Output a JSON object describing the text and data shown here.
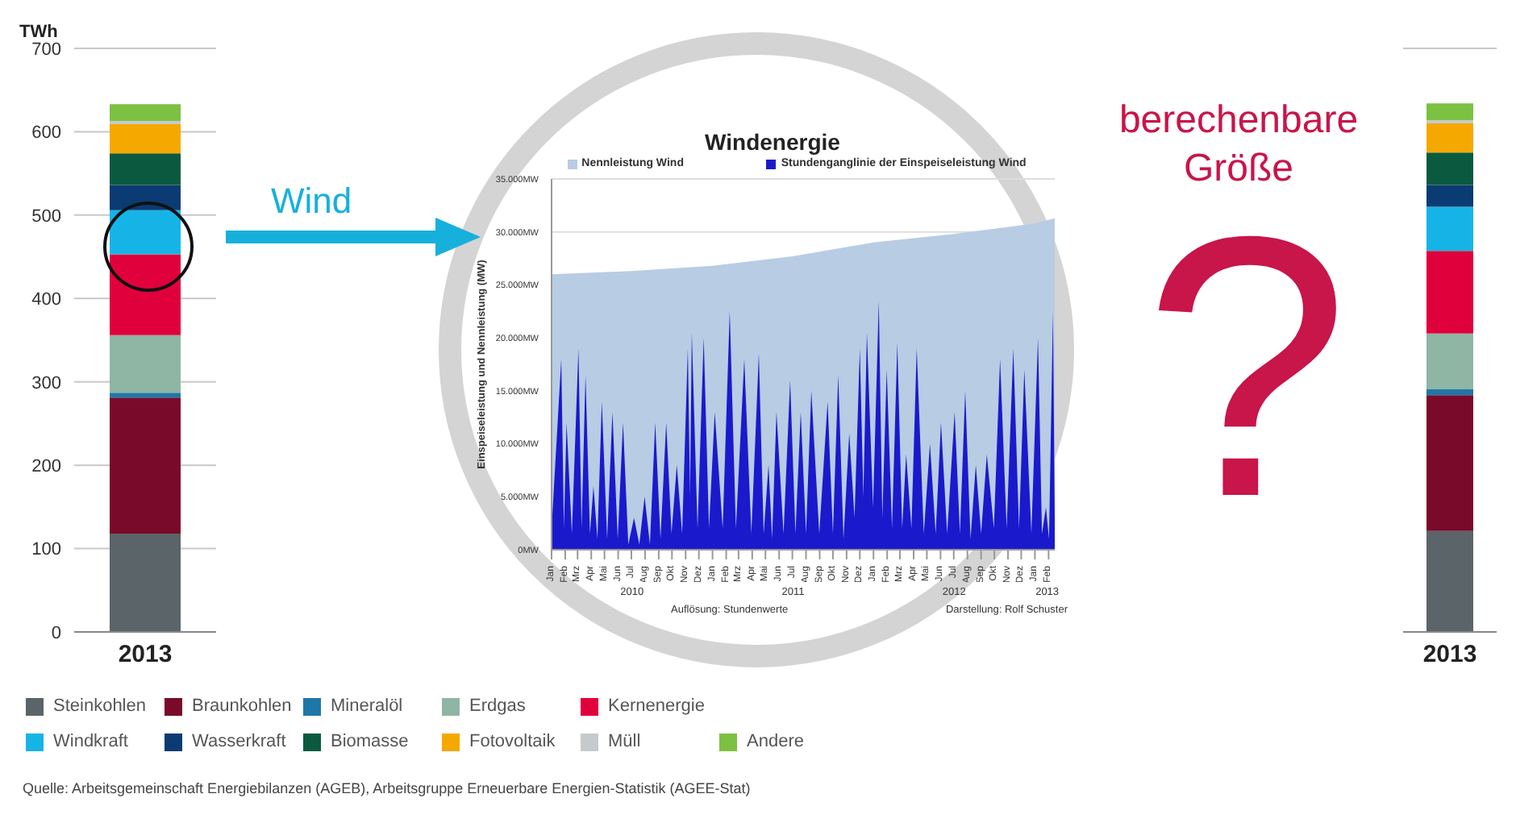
{
  "chart_data": [
    {
      "type": "bar",
      "stacked": true,
      "ylabel": "TWh",
      "categories": [
        "2013"
      ],
      "ylim": [
        0,
        700
      ],
      "yticks": [
        0,
        100,
        200,
        300,
        400,
        500,
        600,
        700
      ],
      "grid": "y",
      "legend": "bottom",
      "series": [
        {
          "name": "Steinkohlen",
          "color": "#5a6469",
          "values": [
            118
          ]
        },
        {
          "name": "Braunkohlen",
          "color": "#7a0a2a",
          "values": [
            163
          ]
        },
        {
          "name": "Mineralöl",
          "color": "#1f77a8",
          "values": [
            6
          ]
        },
        {
          "name": "Erdgas",
          "color": "#8fb5a5",
          "values": [
            69
          ]
        },
        {
          "name": "Kernenergie",
          "color": "#e0003c",
          "values": [
            97
          ]
        },
        {
          "name": "Windkraft",
          "color": "#16b4e6",
          "values": [
            53
          ]
        },
        {
          "name": "Wasserkraft",
          "color": "#0b3b73",
          "values": [
            30
          ]
        },
        {
          "name": "Biomasse",
          "color": "#0b5a40",
          "values": [
            38
          ]
        },
        {
          "name": "Fotovoltaik",
          "color": "#f5a800",
          "values": [
            35
          ]
        },
        {
          "name": "Müll",
          "color": "#c5cbcc",
          "values": [
            4
          ]
        },
        {
          "name": "Andere",
          "color": "#7cc142",
          "values": [
            20
          ]
        }
      ],
      "annotations": [
        "Wind",
        "Quelle: Arbeitsgemeinschaft Energiebilanzen (AGEB), Arbeitsgruppe Erneuerbare Energien-Statistik (AGEE-Stat)"
      ]
    },
    {
      "type": "area",
      "title": "Windenergie",
      "ylabel": "Einspeiseleistung und Nennleistung (MW)",
      "xlim": [
        "2010-01-01",
        "2013-02-15"
      ],
      "ylim": [
        0,
        35000
      ],
      "yticks": [
        {
          "value": 0,
          "label": "0MW"
        },
        {
          "value": 5000,
          "label": "5.000MW"
        },
        {
          "value": 10000,
          "label": "10.000MW"
        },
        {
          "value": 15000,
          "label": "15.000MW"
        },
        {
          "value": 20000,
          "label": "20.000MW"
        },
        {
          "value": 25000,
          "label": "25.000MW"
        },
        {
          "value": 30000,
          "label": "30.000MW"
        },
        {
          "value": 35000,
          "label": "35.000MW"
        }
      ],
      "xticks": [
        {
          "value": "2010-01-01",
          "label": "Jan"
        },
        {
          "value": "2010-02-01",
          "label": "Feb"
        },
        {
          "value": "2010-03-01",
          "label": "Mrz"
        },
        {
          "value": "2010-04-01",
          "label": "Apr"
        },
        {
          "value": "2010-05-01",
          "label": "Mai"
        },
        {
          "value": "2010-06-01",
          "label": "Jun"
        },
        {
          "value": "2010-07-01",
          "label": "Jul"
        },
        {
          "value": "2010-08-01",
          "label": "Aug"
        },
        {
          "value": "2010-09-01",
          "label": "Sep"
        },
        {
          "value": "2010-10-01",
          "label": "Okt"
        },
        {
          "value": "2010-11-01",
          "label": "Nov"
        },
        {
          "value": "2010-12-01",
          "label": "Dez"
        },
        {
          "value": "2011-01-01",
          "label": "Jan"
        },
        {
          "value": "2011-02-01",
          "label": "Feb"
        },
        {
          "value": "2011-03-01",
          "label": "Mrz"
        },
        {
          "value": "2011-04-01",
          "label": "Apr"
        },
        {
          "value": "2011-05-01",
          "label": "Mai"
        },
        {
          "value": "2011-06-01",
          "label": "Jun"
        },
        {
          "value": "2011-07-01",
          "label": "Jul"
        },
        {
          "value": "2011-08-01",
          "label": "Aug"
        },
        {
          "value": "2011-09-01",
          "label": "Sep"
        },
        {
          "value": "2011-10-01",
          "label": "Okt"
        },
        {
          "value": "2011-11-01",
          "label": "Nov"
        },
        {
          "value": "2011-12-01",
          "label": "Dez"
        },
        {
          "value": "2012-01-01",
          "label": "Jan"
        },
        {
          "value": "2012-02-01",
          "label": "Feb"
        },
        {
          "value": "2012-03-01",
          "label": "Mrz"
        },
        {
          "value": "2012-04-01",
          "label": "Apr"
        },
        {
          "value": "2012-05-01",
          "label": "Mai"
        },
        {
          "value": "2012-06-01",
          "label": "Jun"
        },
        {
          "value": "2012-07-01",
          "label": "Jul"
        },
        {
          "value": "2012-08-01",
          "label": "Aug"
        },
        {
          "value": "2012-09-01",
          "label": "Sep"
        },
        {
          "value": "2012-10-01",
          "label": "Okt"
        },
        {
          "value": "2012-11-01",
          "label": "Nov"
        },
        {
          "value": "2012-12-01",
          "label": "Dez"
        },
        {
          "value": "2013-01-01",
          "label": "Jan"
        },
        {
          "value": "2013-02-01",
          "label": "Feb"
        }
      ],
      "grid": "y",
      "legend": "top",
      "series": [
        {
          "name": "Nennleistung Wind",
          "color": "#b8cce4",
          "x": [
            "2010-01-01",
            "2010-07-01",
            "2011-01-01",
            "2011-07-01",
            "2012-01-01",
            "2012-07-01",
            "2013-01-01",
            "2013-02-15"
          ],
          "values": [
            26000,
            26300,
            26800,
            27700,
            29000,
            29800,
            30800,
            31300
          ]
        },
        {
          "name": "Stundenganglinie der Einspeiseleistung Wind",
          "color": "#1a1acc",
          "x": [
            "2010-01-01",
            "2010-01-23",
            "2010-01-29",
            "2010-02-04",
            "2010-02-16",
            "2010-03-03",
            "2010-03-10",
            "2010-03-19",
            "2010-03-29",
            "2010-04-06",
            "2010-04-15",
            "2010-04-25",
            "2010-05-07",
            "2010-05-19",
            "2010-05-31",
            "2010-06-12",
            "2010-06-24",
            "2010-07-07",
            "2010-07-19",
            "2010-07-31",
            "2010-08-12",
            "2010-08-24",
            "2010-09-05",
            "2010-09-18",
            "2010-09-30",
            "2010-10-12",
            "2010-10-24",
            "2010-11-06",
            "2010-11-11",
            "2010-11-15",
            "2010-11-28",
            "2010-12-12",
            "2010-12-24",
            "2011-01-06",
            "2011-01-24",
            "2011-02-09",
            "2011-02-23",
            "2011-03-14",
            "2011-03-30",
            "2011-04-16",
            "2011-04-27",
            "2011-05-08",
            "2011-05-16",
            "2011-05-26",
            "2011-06-11",
            "2011-06-26",
            "2011-07-08",
            "2011-07-20",
            "2011-08-01",
            "2011-08-13",
            "2011-08-31",
            "2011-09-19",
            "2011-10-01",
            "2011-10-13",
            "2011-10-25",
            "2011-11-07",
            "2011-11-19",
            "2011-12-01",
            "2011-12-09",
            "2011-12-17",
            "2011-12-31",
            "2012-01-13",
            "2012-01-21",
            "2012-01-31",
            "2012-02-12",
            "2012-02-24",
            "2012-03-06",
            "2012-03-15",
            "2012-03-27",
            "2012-04-08",
            "2012-04-24",
            "2012-05-08",
            "2012-05-21",
            "2012-06-02",
            "2012-06-16",
            "2012-07-03",
            "2012-07-15",
            "2012-07-27",
            "2012-08-08",
            "2012-08-20",
            "2012-09-01",
            "2012-09-14",
            "2012-09-30",
            "2012-10-14",
            "2012-10-29",
            "2012-11-13",
            "2012-11-26",
            "2012-12-08",
            "2012-12-24",
            "2013-01-08",
            "2013-01-17",
            "2013-01-26",
            "2013-02-02",
            "2013-02-11",
            "2013-02-15"
          ],
          "values": [
            2000,
            18000,
            2000,
            12000,
            1500,
            19000,
            2000,
            16500,
            1500,
            6000,
            1000,
            14000,
            1000,
            13000,
            1000,
            12000,
            500,
            3000,
            500,
            5000,
            500,
            12000,
            1000,
            12000,
            1500,
            8000,
            1500,
            19000,
            5000,
            20500,
            2000,
            20000,
            2000,
            13000,
            2000,
            22500,
            2000,
            18000,
            1500,
            18500,
            1500,
            8000,
            1000,
            13000,
            1500,
            16000,
            1500,
            13000,
            1500,
            15000,
            1500,
            14000,
            1500,
            16500,
            1000,
            11000,
            3000,
            19000,
            5000,
            20500,
            4000,
            23500,
            3000,
            17000,
            2000,
            19500,
            2000,
            9000,
            2000,
            19000,
            1500,
            10000,
            1500,
            12000,
            1500,
            13000,
            1500,
            15000,
            1000,
            8000,
            1500,
            9000,
            2000,
            18000,
            2000,
            19000,
            2000,
            17000,
            1500,
            20000,
            1500,
            4000,
            1000,
            22500,
            3000
          ]
        }
      ],
      "annotations": [
        "2010",
        "2011",
        "2012",
        "2013",
        "Auflösung: Stundenwerte",
        "Darstellung: Rolf Schuster"
      ]
    },
    {
      "type": "bar",
      "stacked": true,
      "categories": [
        "2013"
      ],
      "ylim": [
        0,
        700
      ],
      "tick_labels": "x",
      "grid": "y",
      "series": [
        {
          "color": "#5a6469",
          "values": [
            121
          ]
        },
        {
          "color": "#7a0a2a",
          "values": [
            163
          ]
        },
        {
          "color": "#1f77a8",
          "values": [
            7
          ]
        },
        {
          "color": "#8fb5a5",
          "values": [
            67
          ]
        },
        {
          "color": "#e0003c",
          "values": [
            99
          ]
        },
        {
          "color": "#16b4e6",
          "values": [
            53
          ]
        },
        {
          "color": "#0b3b73",
          "values": [
            26
          ]
        },
        {
          "color": "#0b5a40",
          "values": [
            39
          ]
        },
        {
          "color": "#f5a800",
          "values": [
            35
          ]
        },
        {
          "color": "#c5cbcc",
          "values": [
            4
          ]
        },
        {
          "color": "#7cc142",
          "values": [
            20
          ]
        }
      ],
      "annotations": [
        "berechenbare Größe",
        "?"
      ]
    }
  ]
}
